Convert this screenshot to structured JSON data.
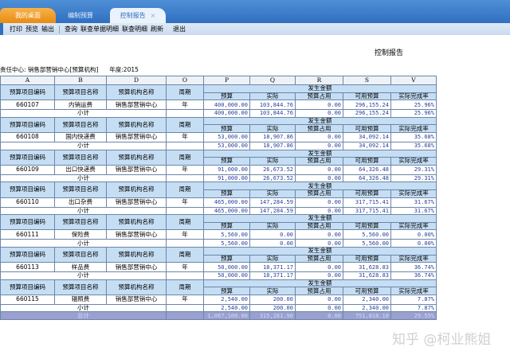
{
  "tabs": [
    {
      "label": "我的桌面"
    },
    {
      "label": "编制预算"
    },
    {
      "label": "控制报告",
      "close": "×"
    }
  ],
  "toolbar": [
    "打印",
    "预览",
    "输出",
    "查询",
    "联查单据明细",
    "联查明细",
    "刷新",
    "退出"
  ],
  "report_title": "控制报告",
  "info": {
    "center": "责任中心: 销售部营销中心[预算机构]",
    "year": "年度:2015"
  },
  "columns": [
    "A",
    "B",
    "D",
    "O",
    "P",
    "Q",
    "R",
    "S",
    "V"
  ],
  "headers": {
    "code": "预算项目编码",
    "name": "预算项目名称",
    "org": "预算机构名称",
    "period": "周期",
    "amount": "发生金额",
    "sub": [
      "预算",
      "实际",
      "预算占用",
      "可用预算",
      "实际完成率"
    ]
  },
  "subtotal_label": "小计",
  "total_label": "总计",
  "rows": [
    {
      "code": "660107",
      "name": "内销运费",
      "org": "销售部营销中心",
      "period": "年",
      "values": [
        "400,000.00",
        "103,844.76",
        "0.00",
        "296,155.24",
        "25.96%"
      ]
    },
    {
      "code": "660108",
      "name": "国内快递费",
      "org": "销售部营销中心",
      "period": "年",
      "values": [
        "53,000.00",
        "18,907.86",
        "0.00",
        "34,092.14",
        "35.68%"
      ]
    },
    {
      "code": "660109",
      "name": "出口快递费",
      "org": "销售部营销中心",
      "period": "年",
      "values": [
        "91,000.00",
        "26,673.52",
        "0.00",
        "64,326.48",
        "29.31%"
      ]
    },
    {
      "code": "660110",
      "name": "出口杂费",
      "org": "销售部营销中心",
      "period": "年",
      "values": [
        "465,000.00",
        "147,284.59",
        "0.00",
        "317,715.41",
        "31.67%"
      ]
    },
    {
      "code": "660111",
      "name": "保险费",
      "org": "销售部营销中心",
      "period": "年",
      "values": [
        "5,560.00",
        "0.00",
        "0.00",
        "5,560.00",
        "0.00%"
      ]
    },
    {
      "code": "660113",
      "name": "样品费",
      "org": "销售部营销中心",
      "period": "年",
      "values": [
        "50,000.00",
        "18,371.17",
        "0.00",
        "31,628.83",
        "36.74%"
      ]
    },
    {
      "code": "660115",
      "name": "辐照费",
      "org": "销售部营销中心",
      "period": "年",
      "values": [
        "2,540.00",
        "200.00",
        "0.00",
        "2,340.00",
        "7.87%"
      ]
    }
  ],
  "total": [
    "1,067,100.00",
    "315,281.90",
    "0.00",
    "751,818.10",
    "29.55%"
  ],
  "watermark": "知乎 @柯业熊姐"
}
